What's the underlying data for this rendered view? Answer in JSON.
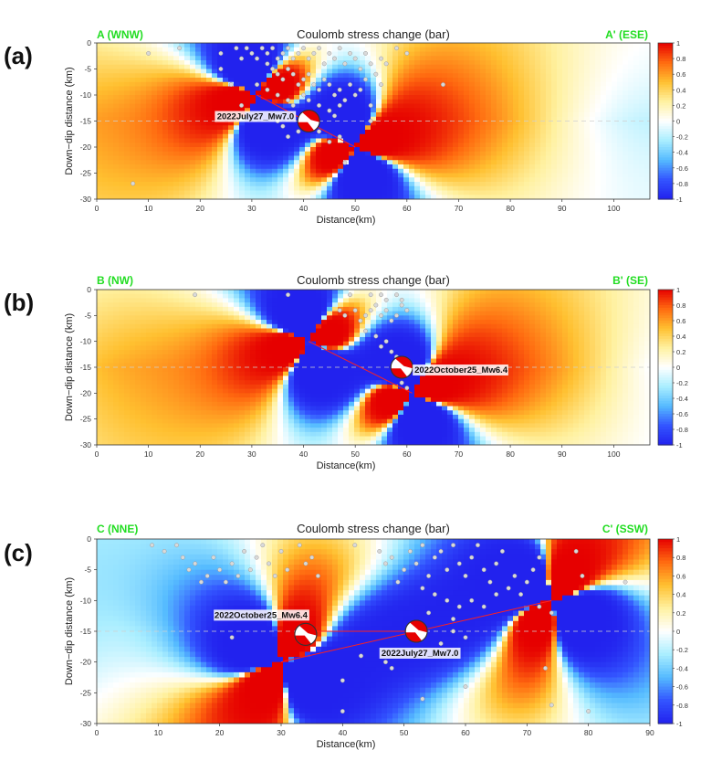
{
  "figure": {
    "colors": {
      "positive": "#e60000",
      "negative": "#3340ee",
      "endpoint_label": "#22dd22",
      "cmap": [
        "#2222ee",
        "#3355ff",
        "#55bbff",
        "#aaeeff",
        "#ffffff",
        "#fff1a0",
        "#ffc030",
        "#ff6a10",
        "#e60000"
      ]
    }
  },
  "chart_data": [
    {
      "type": "heatmap",
      "panel_label": "(a)",
      "title": "Coulomb stress change (bar)",
      "xlabel": "Distance(km)",
      "ylabel": "Down−dip distance (km)",
      "xlim": [
        0,
        107
      ],
      "ylim": [
        -30,
        0
      ],
      "xticks": [
        0,
        10,
        20,
        30,
        40,
        50,
        60,
        70,
        80,
        90,
        100
      ],
      "yticks": [
        0,
        -5,
        -10,
        -15,
        -20,
        -25,
        -30
      ],
      "left_label": "A (WNW)",
      "right_label": "A' (ESE)",
      "colorbar": {
        "min": -1,
        "max": 1,
        "ticks": [
          1,
          0.8,
          0.6,
          0.4,
          0.2,
          0,
          -0.2,
          -0.4,
          -0.6,
          -0.8,
          -1
        ]
      },
      "fault_segments": [
        [
          31,
          -10,
          50,
          -20
        ]
      ],
      "source_tips": [
        [
          31,
          -10
        ],
        [
          50,
          -20
        ]
      ],
      "event": {
        "label": "2022July27_Mw7.0",
        "x": 41,
        "y": -15
      },
      "aftershocks": [
        [
          7,
          -27
        ],
        [
          10,
          -2
        ],
        [
          16,
          -1
        ],
        [
          24,
          -2
        ],
        [
          27,
          -1
        ],
        [
          28,
          -3
        ],
        [
          29,
          -1
        ],
        [
          30,
          -2
        ],
        [
          31,
          -3
        ],
        [
          32,
          -1
        ],
        [
          33,
          -2
        ],
        [
          34,
          -1
        ],
        [
          35,
          -3
        ],
        [
          36,
          -2
        ],
        [
          37,
          -1
        ],
        [
          38,
          -3
        ],
        [
          39,
          -2
        ],
        [
          40,
          -1
        ],
        [
          41,
          -3
        ],
        [
          42,
          -2
        ],
        [
          43,
          -1
        ],
        [
          44,
          -4
        ],
        [
          45,
          -2
        ],
        [
          46,
          -3
        ],
        [
          47,
          -1
        ],
        [
          48,
          -4
        ],
        [
          49,
          -2
        ],
        [
          50,
          -3
        ],
        [
          51,
          -5
        ],
        [
          52,
          -2
        ],
        [
          53,
          -4
        ],
        [
          54,
          -6
        ],
        [
          55,
          -3
        ],
        [
          33,
          -4
        ],
        [
          34,
          -5
        ],
        [
          35,
          -6
        ],
        [
          36,
          -7
        ],
        [
          37,
          -5
        ],
        [
          38,
          -6
        ],
        [
          39,
          -8
        ],
        [
          40,
          -7
        ],
        [
          41,
          -6
        ],
        [
          42,
          -8
        ],
        [
          43,
          -9
        ],
        [
          44,
          -7
        ],
        [
          45,
          -8
        ],
        [
          46,
          -10
        ],
        [
          47,
          -9
        ],
        [
          48,
          -11
        ],
        [
          49,
          -8
        ],
        [
          50,
          -10
        ],
        [
          51,
          -9
        ],
        [
          52,
          -7
        ],
        [
          31,
          -8
        ],
        [
          33,
          -9
        ],
        [
          35,
          -10
        ],
        [
          37,
          -11
        ],
        [
          38,
          -12
        ],
        [
          40,
          -10
        ],
        [
          41,
          -11
        ],
        [
          43,
          -12
        ],
        [
          45,
          -13
        ],
        [
          46,
          -14
        ],
        [
          47,
          -12
        ],
        [
          35,
          -15
        ],
        [
          36,
          -16
        ],
        [
          37,
          -18
        ],
        [
          39,
          -17
        ],
        [
          43,
          -17
        ],
        [
          45,
          -19
        ],
        [
          47,
          -18
        ],
        [
          48,
          -23
        ],
        [
          24,
          -5
        ],
        [
          26,
          -8
        ],
        [
          28,
          -12
        ],
        [
          56,
          -4
        ],
        [
          58,
          -1
        ],
        [
          60,
          -2
        ],
        [
          67,
          -8
        ],
        [
          53,
          -12
        ],
        [
          55,
          -8
        ],
        [
          53,
          -15
        ]
      ]
    },
    {
      "type": "heatmap",
      "panel_label": "(b)",
      "title": "Coulomb stress change (bar)",
      "xlabel": "Distance(km)",
      "ylabel": "Down−dip distance (km)",
      "xlim": [
        0,
        107
      ],
      "ylim": [
        -30,
        0
      ],
      "xticks": [
        0,
        10,
        20,
        30,
        40,
        50,
        60,
        70,
        80,
        90,
        100
      ],
      "yticks": [
        0,
        -5,
        -10,
        -15,
        -20,
        -25,
        -30
      ],
      "left_label": "B (NW)",
      "right_label": "B' (SE)",
      "colorbar": {
        "min": -1,
        "max": 1,
        "ticks": [
          1,
          0.8,
          0.6,
          0.4,
          0.2,
          0,
          -0.2,
          -0.4,
          -0.6,
          -0.8,
          -1
        ]
      },
      "fault_segments": [
        [
          41,
          -10,
          61,
          -20
        ]
      ],
      "source_tips": [
        [
          41,
          -10
        ],
        [
          61,
          -20
        ]
      ],
      "event": {
        "label": "2022October25_Mw6.4",
        "x": 59,
        "y": -15
      },
      "aftershocks": [
        [
          19,
          -1
        ],
        [
          37,
          -1
        ],
        [
          49,
          -1
        ],
        [
          53,
          -1
        ],
        [
          55,
          -1
        ],
        [
          56,
          -2
        ],
        [
          58,
          -1
        ],
        [
          59,
          -2
        ],
        [
          47,
          -4
        ],
        [
          48,
          -5
        ],
        [
          50,
          -4
        ],
        [
          51,
          -6
        ],
        [
          52,
          -5
        ],
        [
          53,
          -4
        ],
        [
          54,
          -3
        ],
        [
          55,
          -5
        ],
        [
          56,
          -4
        ],
        [
          57,
          -6
        ],
        [
          58,
          -5
        ],
        [
          59,
          -3
        ],
        [
          60,
          -4
        ],
        [
          52,
          -8
        ],
        [
          54,
          -9
        ],
        [
          55,
          -11
        ],
        [
          57,
          -12
        ],
        [
          56,
          -10
        ],
        [
          58,
          -13
        ],
        [
          59,
          -14
        ],
        [
          60,
          -16
        ],
        [
          61,
          -15
        ],
        [
          59,
          -18
        ],
        [
          60,
          -19
        ]
      ]
    },
    {
      "type": "heatmap",
      "panel_label": "(c)",
      "title": "Coulomb stress change (bar)",
      "xlabel": "Distance(km)",
      "ylabel": "Down−dip distance (km)",
      "xlim": [
        0,
        90
      ],
      "ylim": [
        -30,
        0
      ],
      "xticks": [
        0,
        10,
        20,
        30,
        40,
        50,
        60,
        70,
        80,
        90
      ],
      "yticks": [
        0,
        -5,
        -10,
        -15,
        -20,
        -25,
        -30
      ],
      "left_label": "C (NNE)",
      "right_label": "C' (SSW)",
      "colorbar": {
        "min": -1,
        "max": 1,
        "ticks": [
          1,
          0.8,
          0.6,
          0.4,
          0.2,
          0,
          -0.2,
          -0.4,
          -0.6,
          -0.8,
          -1
        ]
      },
      "fault_segments": [
        [
          30,
          -20,
          74,
          -10
        ],
        [
          33,
          -15,
          52,
          -15
        ]
      ],
      "source_tips": [
        [
          30,
          -20
        ],
        [
          74,
          -10
        ]
      ],
      "events": [
        {
          "label": "2022October25_Mw6.4",
          "x": 34,
          "y": -15.5
        },
        {
          "label": "2022July27_Mw7.0",
          "x": 52,
          "y": -15
        }
      ],
      "aftershocks": [
        [
          9,
          -1
        ],
        [
          11,
          -2
        ],
        [
          13,
          -1
        ],
        [
          14,
          -3
        ],
        [
          15,
          -5
        ],
        [
          16,
          -4
        ],
        [
          17,
          -7
        ],
        [
          18,
          -6
        ],
        [
          19,
          -3
        ],
        [
          20,
          -5
        ],
        [
          21,
          -7
        ],
        [
          22,
          -4
        ],
        [
          23,
          -6
        ],
        [
          24,
          -2
        ],
        [
          25,
          -5
        ],
        [
          26,
          -3
        ],
        [
          27,
          -1
        ],
        [
          28,
          -4
        ],
        [
          29,
          -6
        ],
        [
          30,
          -2
        ],
        [
          31,
          -5
        ],
        [
          33,
          -1
        ],
        [
          34,
          -4
        ],
        [
          35,
          -3
        ],
        [
          36,
          -6
        ],
        [
          42,
          -1
        ],
        [
          46,
          -2
        ],
        [
          47,
          -4
        ],
        [
          48,
          -3
        ],
        [
          49,
          -7
        ],
        [
          50,
          -5
        ],
        [
          51,
          -2
        ],
        [
          52,
          -4
        ],
        [
          53,
          -1
        ],
        [
          54,
          -6
        ],
        [
          55,
          -3
        ],
        [
          56,
          -2
        ],
        [
          57,
          -5
        ],
        [
          58,
          -1
        ],
        [
          59,
          -4
        ],
        [
          60,
          -6
        ],
        [
          61,
          -3
        ],
        [
          62,
          -1
        ],
        [
          63,
          -5
        ],
        [
          64,
          -7
        ],
        [
          65,
          -4
        ],
        [
          66,
          -2
        ],
        [
          67,
          -8
        ],
        [
          68,
          -6
        ],
        [
          69,
          -9
        ],
        [
          70,
          -7
        ],
        [
          71,
          -5
        ],
        [
          72,
          -3
        ],
        [
          53,
          -8
        ],
        [
          55,
          -9
        ],
        [
          57,
          -10
        ],
        [
          59,
          -11
        ],
        [
          61,
          -10
        ],
        [
          63,
          -11
        ],
        [
          65,
          -9
        ],
        [
          58,
          -13
        ],
        [
          54,
          -12
        ],
        [
          56,
          -17
        ],
        [
          58,
          -15
        ],
        [
          43,
          -19
        ],
        [
          48,
          -21
        ],
        [
          47,
          -20
        ],
        [
          40,
          -23
        ],
        [
          60,
          -16
        ],
        [
          72,
          -11
        ],
        [
          78,
          -2
        ],
        [
          79,
          -6
        ],
        [
          86,
          -7
        ],
        [
          74,
          -12
        ],
        [
          73,
          -21
        ],
        [
          60,
          -24
        ],
        [
          53,
          -26
        ],
        [
          74,
          -27
        ],
        [
          22,
          -16
        ],
        [
          40,
          -28
        ],
        [
          80,
          -28
        ]
      ]
    }
  ]
}
